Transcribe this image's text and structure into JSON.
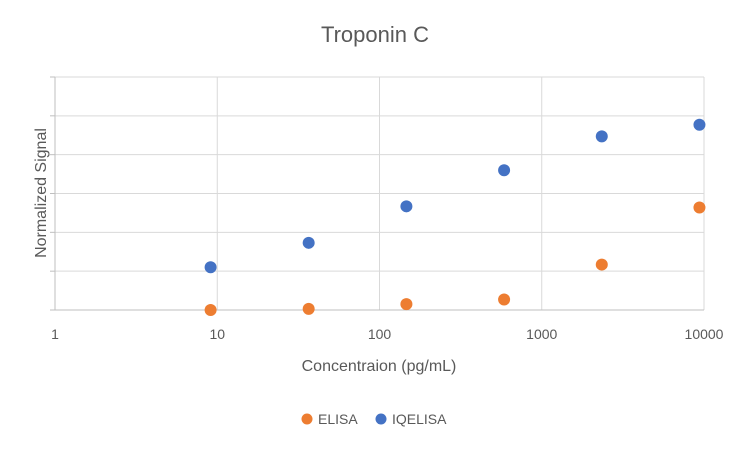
{
  "chart_data": {
    "type": "scatter",
    "title": "Troponin C",
    "xlabel": "Concentraion (pg/mL)",
    "ylabel": "Normalized Signal",
    "x_scale": "log",
    "xlim": [
      1,
      10000
    ],
    "x_tick_labels": [
      "1",
      "10",
      "100",
      "1000",
      "10000"
    ],
    "ylim": [
      0,
      6
    ],
    "y_tick_labels_shown": false,
    "grid": true,
    "legend_position": "bottom",
    "series": [
      {
        "name": "ELISA",
        "color": "#ED7D31",
        "x": [
          9.1,
          36.6,
          146.5,
          586,
          2344,
          9375
        ],
        "y": [
          0.0,
          0.03,
          0.15,
          0.27,
          1.17,
          2.64
        ]
      },
      {
        "name": "IQELISA",
        "color": "#4472C4",
        "x": [
          9.1,
          36.6,
          146.5,
          586,
          2344,
          9375
        ],
        "y": [
          1.1,
          1.73,
          2.67,
          3.6,
          4.47,
          4.77
        ]
      }
    ]
  }
}
